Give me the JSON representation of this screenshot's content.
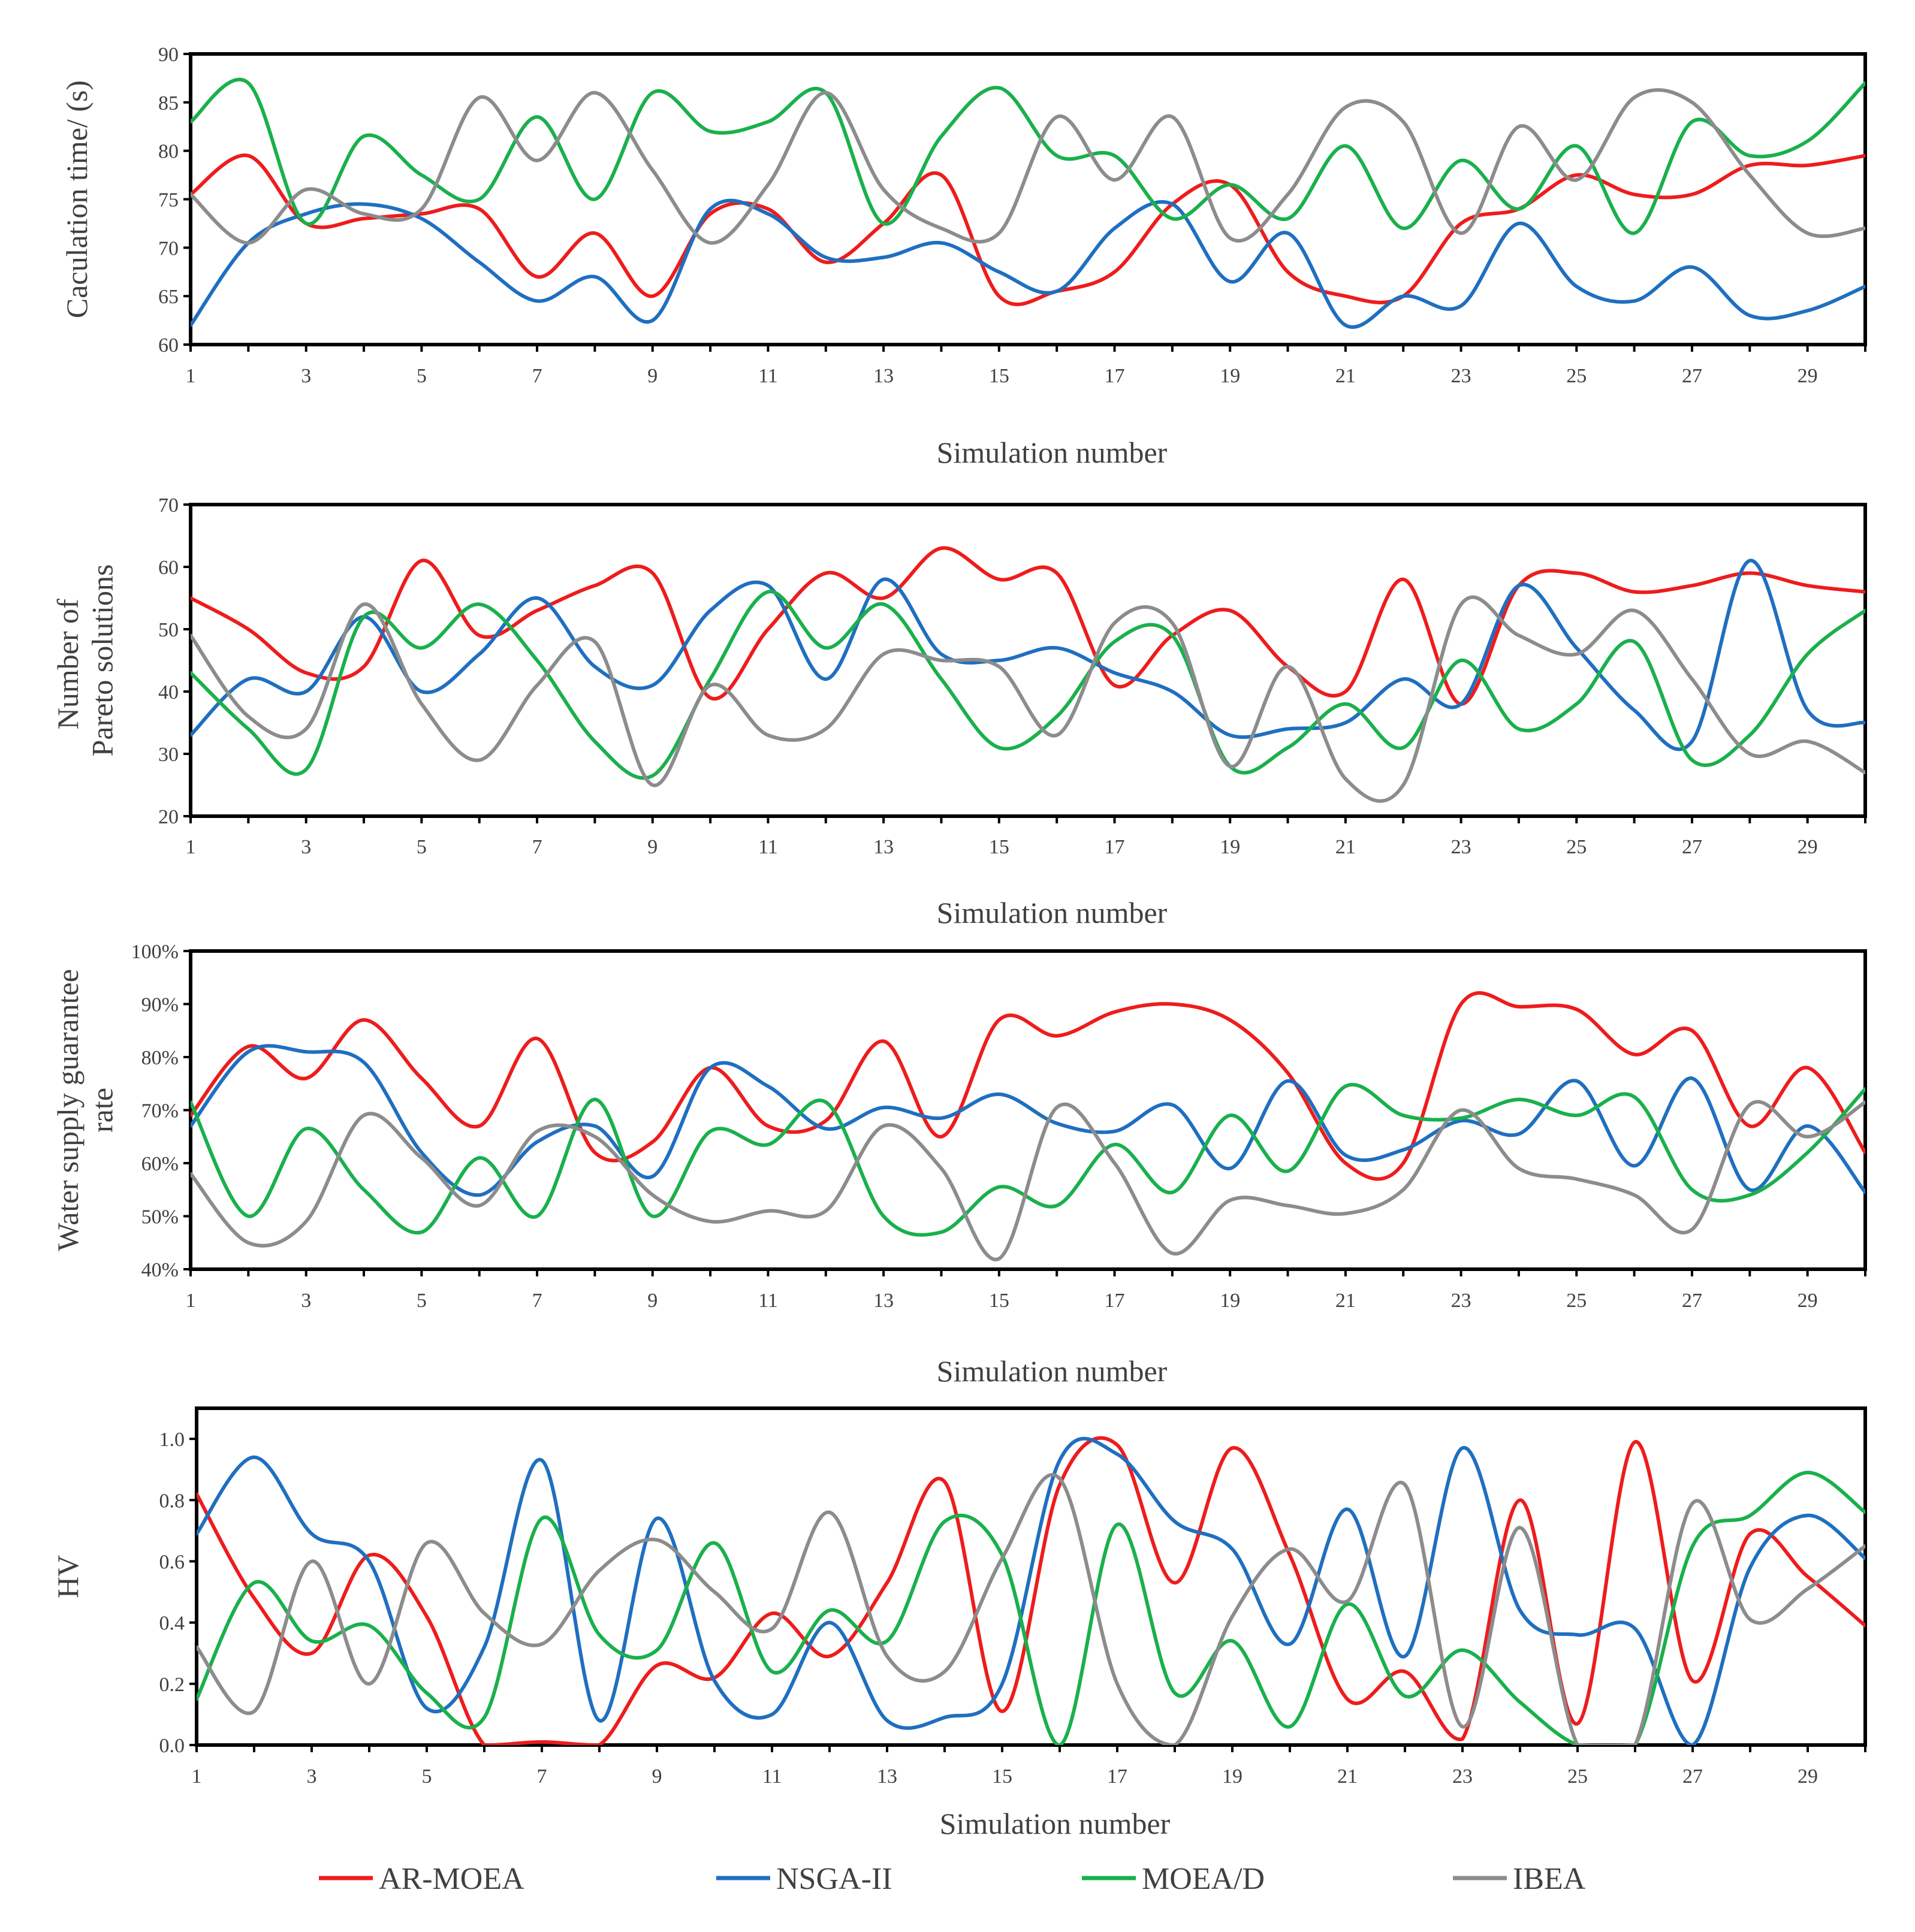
{
  "legend": [
    {
      "name": "AR-MOEA",
      "color": "#ee1c1c"
    },
    {
      "name": "NSGA-II",
      "color": "#1f6fc0"
    },
    {
      "name": "MOEA/D",
      "color": "#1ab04c"
    },
    {
      "name": "IBEA",
      "color": "#8c8c8c"
    }
  ],
  "chart_data": [
    {
      "type": "line",
      "title": "",
      "xlabel": "Simulation number",
      "ylabel": "Caculation time/ (s)",
      "ylim": [
        60,
        90
      ],
      "xlim": [
        1,
        30
      ],
      "yticks": [
        "60",
        "65",
        "70",
        "75",
        "80",
        "85",
        "90"
      ],
      "xticks": [
        "1",
        "3",
        "5",
        "7",
        "9",
        "11",
        "13",
        "15",
        "17",
        "19",
        "21",
        "23",
        "25",
        "27",
        "29"
      ],
      "x": [
        1,
        2,
        3,
        4,
        5,
        6,
        7,
        8,
        9,
        10,
        11,
        12,
        13,
        14,
        15,
        16,
        17,
        18,
        19,
        20,
        21,
        22,
        23,
        24,
        25,
        26,
        27,
        28,
        29,
        30
      ],
      "series": [
        {
          "name": "AR-MOEA",
          "values": [
            75.5,
            79.5,
            72.5,
            73,
            73.5,
            74,
            67,
            71.5,
            65,
            73.5,
            74,
            68.5,
            72.5,
            77.5,
            65,
            65.5,
            67.5,
            74.5,
            76.5,
            67.5,
            65,
            65,
            72.5,
            74,
            77.5,
            75.5,
            75.5,
            78.5,
            78.5,
            79.5
          ]
        },
        {
          "name": "NSGA-II",
          "values": [
            62,
            70.5,
            73.5,
            74.5,
            73,
            68.5,
            64.5,
            67,
            62.5,
            74,
            73.5,
            69,
            69,
            70.5,
            67.5,
            65.5,
            72,
            74.5,
            66.5,
            71.5,
            62,
            65,
            64,
            72.5,
            66,
            64.5,
            68,
            63,
            63.5,
            66
          ]
        },
        {
          "name": "MOEA/D",
          "values": [
            83,
            87,
            72.5,
            81.5,
            77.5,
            75,
            83.5,
            75,
            86,
            82,
            83,
            86,
            72.5,
            81.5,
            86.5,
            79.5,
            79.5,
            73,
            76.5,
            73,
            80.5,
            72,
            79,
            74,
            80.5,
            71.5,
            83,
            79.5,
            81,
            87
          ]
        },
        {
          "name": "IBEA",
          "values": [
            75.5,
            70.5,
            76,
            73.5,
            74,
            85.5,
            79,
            86,
            78,
            70.5,
            76.5,
            86,
            76,
            72,
            71.5,
            83.5,
            77,
            83.5,
            71,
            75.5,
            84.5,
            83,
            71.5,
            82.5,
            77,
            85.5,
            85,
            77.5,
            71.5,
            72
          ]
        }
      ]
    },
    {
      "type": "line",
      "title": "",
      "xlabel": "Simulation number",
      "ylabel": "Number of  Pareto solutions",
      "ylim": [
        20,
        70
      ],
      "xlim": [
        1,
        30
      ],
      "yticks": [
        "20",
        "30",
        "40",
        "50",
        "60",
        "70"
      ],
      "xticks": [
        "1",
        "3",
        "5",
        "7",
        "9",
        "11",
        "13",
        "15",
        "17",
        "19",
        "21",
        "23",
        "25",
        "27",
        "29"
      ],
      "x": [
        1,
        2,
        3,
        4,
        5,
        6,
        7,
        8,
        9,
        10,
        11,
        12,
        13,
        14,
        15,
        16,
        17,
        18,
        19,
        20,
        21,
        22,
        23,
        24,
        25,
        26,
        27,
        28,
        29,
        30
      ],
      "series": [
        {
          "name": "AR-MOEA",
          "values": [
            55,
            50,
            43,
            44,
            61,
            49,
            53,
            57,
            59,
            39,
            50,
            59,
            55,
            63,
            58,
            59,
            41,
            49,
            53,
            44,
            40,
            58,
            38,
            57,
            59,
            56,
            57,
            59,
            57,
            56
          ]
        },
        {
          "name": "NSGA-II",
          "values": [
            33,
            42,
            40,
            52,
            40,
            46,
            55,
            44,
            41,
            53,
            57,
            42,
            58,
            46,
            45,
            47,
            43,
            40,
            33,
            34,
            35,
            42,
            38,
            57,
            47,
            37,
            32,
            61,
            37,
            35
          ]
        },
        {
          "name": "MOEA/D",
          "values": [
            43,
            34,
            27.5,
            52,
            47,
            54,
            45,
            32,
            26.5,
            42,
            56,
            47,
            54,
            42,
            31,
            36,
            48,
            49,
            28,
            31,
            38,
            31,
            45,
            34,
            38,
            48,
            29,
            33,
            46,
            53
          ]
        },
        {
          "name": "IBEA",
          "values": [
            49,
            36,
            34,
            54,
            38,
            29,
            41,
            48,
            25,
            41,
            33,
            34,
            46,
            45,
            44,
            33,
            51,
            51,
            28,
            44,
            26,
            25,
            54,
            49,
            46,
            53,
            42,
            30,
            32,
            27
          ]
        }
      ]
    },
    {
      "type": "line",
      "title": "",
      "xlabel": "Simulation number",
      "ylabel": "Water supply guarantee rate",
      "ylim": [
        40,
        100
      ],
      "xlim": [
        1,
        30
      ],
      "yticks": [
        "40%",
        "50%",
        "60%",
        "70%",
        "80%",
        "90%",
        "100%"
      ],
      "xticks": [
        "1",
        "3",
        "5",
        "7",
        "9",
        "11",
        "13",
        "15",
        "17",
        "19",
        "21",
        "23",
        "25",
        "27",
        "29"
      ],
      "x": [
        1,
        2,
        3,
        4,
        5,
        6,
        7,
        8,
        9,
        10,
        11,
        12,
        13,
        14,
        15,
        16,
        17,
        18,
        19,
        20,
        21,
        22,
        23,
        24,
        25,
        26,
        27,
        28,
        29,
        30
      ],
      "series": [
        {
          "name": "AR-MOEA",
          "values": [
            69,
            82,
            76,
            87,
            76,
            67,
            83.5,
            62,
            64,
            78,
            67,
            68,
            83,
            65,
            87,
            84,
            88.5,
            90,
            87,
            77,
            60,
            60,
            90,
            89.5,
            89,
            80.5,
            85,
            67,
            78,
            62
          ]
        },
        {
          "name": "NSGA-II",
          "values": [
            67,
            81,
            81,
            79,
            62,
            54,
            64,
            67,
            57.5,
            78,
            74.5,
            66.5,
            70.5,
            68.5,
            73,
            67.5,
            66,
            71,
            59,
            75.5,
            61.5,
            62.5,
            68,
            65.5,
            75.5,
            59.5,
            76,
            55,
            67,
            54.5
          ]
        },
        {
          "name": "MOEA/D",
          "values": [
            71.5,
            50,
            66.5,
            55,
            47,
            61,
            50,
            72,
            50,
            66,
            63.5,
            71.5,
            50,
            47,
            55.5,
            52,
            63.5,
            54.5,
            69,
            58.5,
            74.5,
            69,
            68.5,
            72,
            69,
            72.5,
            55,
            54,
            62,
            74
          ]
        },
        {
          "name": "IBEA",
          "values": [
            58,
            45,
            49,
            69,
            61,
            52,
            66,
            65,
            54,
            49,
            51,
            51,
            67,
            59,
            42,
            70.5,
            60,
            43,
            53,
            52,
            50.5,
            55,
            70,
            59,
            57,
            54,
            47.5,
            71,
            65,
            71.5
          ]
        }
      ]
    },
    {
      "type": "line",
      "title": "",
      "xlabel": "Simulation number",
      "ylabel": "HV",
      "ylim": [
        0,
        1.1
      ],
      "xlim": [
        1,
        30
      ],
      "yticks": [
        "0.0",
        "0.2",
        "0.4",
        "0.6",
        "0.8",
        "1.0"
      ],
      "xticks": [
        "1",
        "3",
        "5",
        "7",
        "9",
        "11",
        "13",
        "15",
        "17",
        "19",
        "21",
        "23",
        "25",
        "27",
        "29"
      ],
      "x": [
        1,
        2,
        3,
        4,
        5,
        6,
        7,
        8,
        9,
        10,
        11,
        12,
        13,
        14,
        15,
        16,
        17,
        18,
        19,
        20,
        21,
        22,
        23,
        24,
        25,
        26,
        27,
        28,
        29,
        30
      ],
      "series": [
        {
          "name": "AR-MOEA",
          "values": [
            0.82,
            0.48,
            0.3,
            0.62,
            0.42,
            0.0,
            0.01,
            0.0,
            0.26,
            0.22,
            0.43,
            0.29,
            0.53,
            0.86,
            0.11,
            0.85,
            0.98,
            0.53,
            0.97,
            0.62,
            0.15,
            0.24,
            0.02,
            0.8,
            0.07,
            0.99,
            0.21,
            0.69,
            0.55,
            0.39
          ]
        },
        {
          "name": "NSGA-II",
          "values": [
            0.69,
            0.94,
            0.69,
            0.6,
            0.12,
            0.32,
            0.93,
            0.08,
            0.74,
            0.21,
            0.1,
            0.4,
            0.08,
            0.09,
            0.2,
            0.93,
            0.95,
            0.73,
            0.64,
            0.33,
            0.77,
            0.29,
            0.97,
            0.44,
            0.36,
            0.38,
            0.0,
            0.58,
            0.75,
            0.61
          ]
        },
        {
          "name": "MOEA/D",
          "values": [
            0.15,
            0.53,
            0.34,
            0.39,
            0.17,
            0.09,
            0.74,
            0.36,
            0.31,
            0.66,
            0.24,
            0.44,
            0.34,
            0.73,
            0.62,
            0.0,
            0.72,
            0.17,
            0.34,
            0.06,
            0.46,
            0.16,
            0.31,
            0.14,
            0.0,
            0.0,
            0.65,
            0.75,
            0.89,
            0.76
          ]
        },
        {
          "name": "IBEA",
          "values": [
            0.32,
            0.11,
            0.6,
            0.2,
            0.66,
            0.43,
            0.33,
            0.57,
            0.67,
            0.5,
            0.38,
            0.76,
            0.29,
            0.24,
            0.61,
            0.87,
            0.2,
            0.0,
            0.42,
            0.64,
            0.47,
            0.85,
            0.06,
            0.71,
            0.0,
            0.0,
            0.79,
            0.41,
            0.51,
            0.65
          ]
        }
      ]
    }
  ]
}
